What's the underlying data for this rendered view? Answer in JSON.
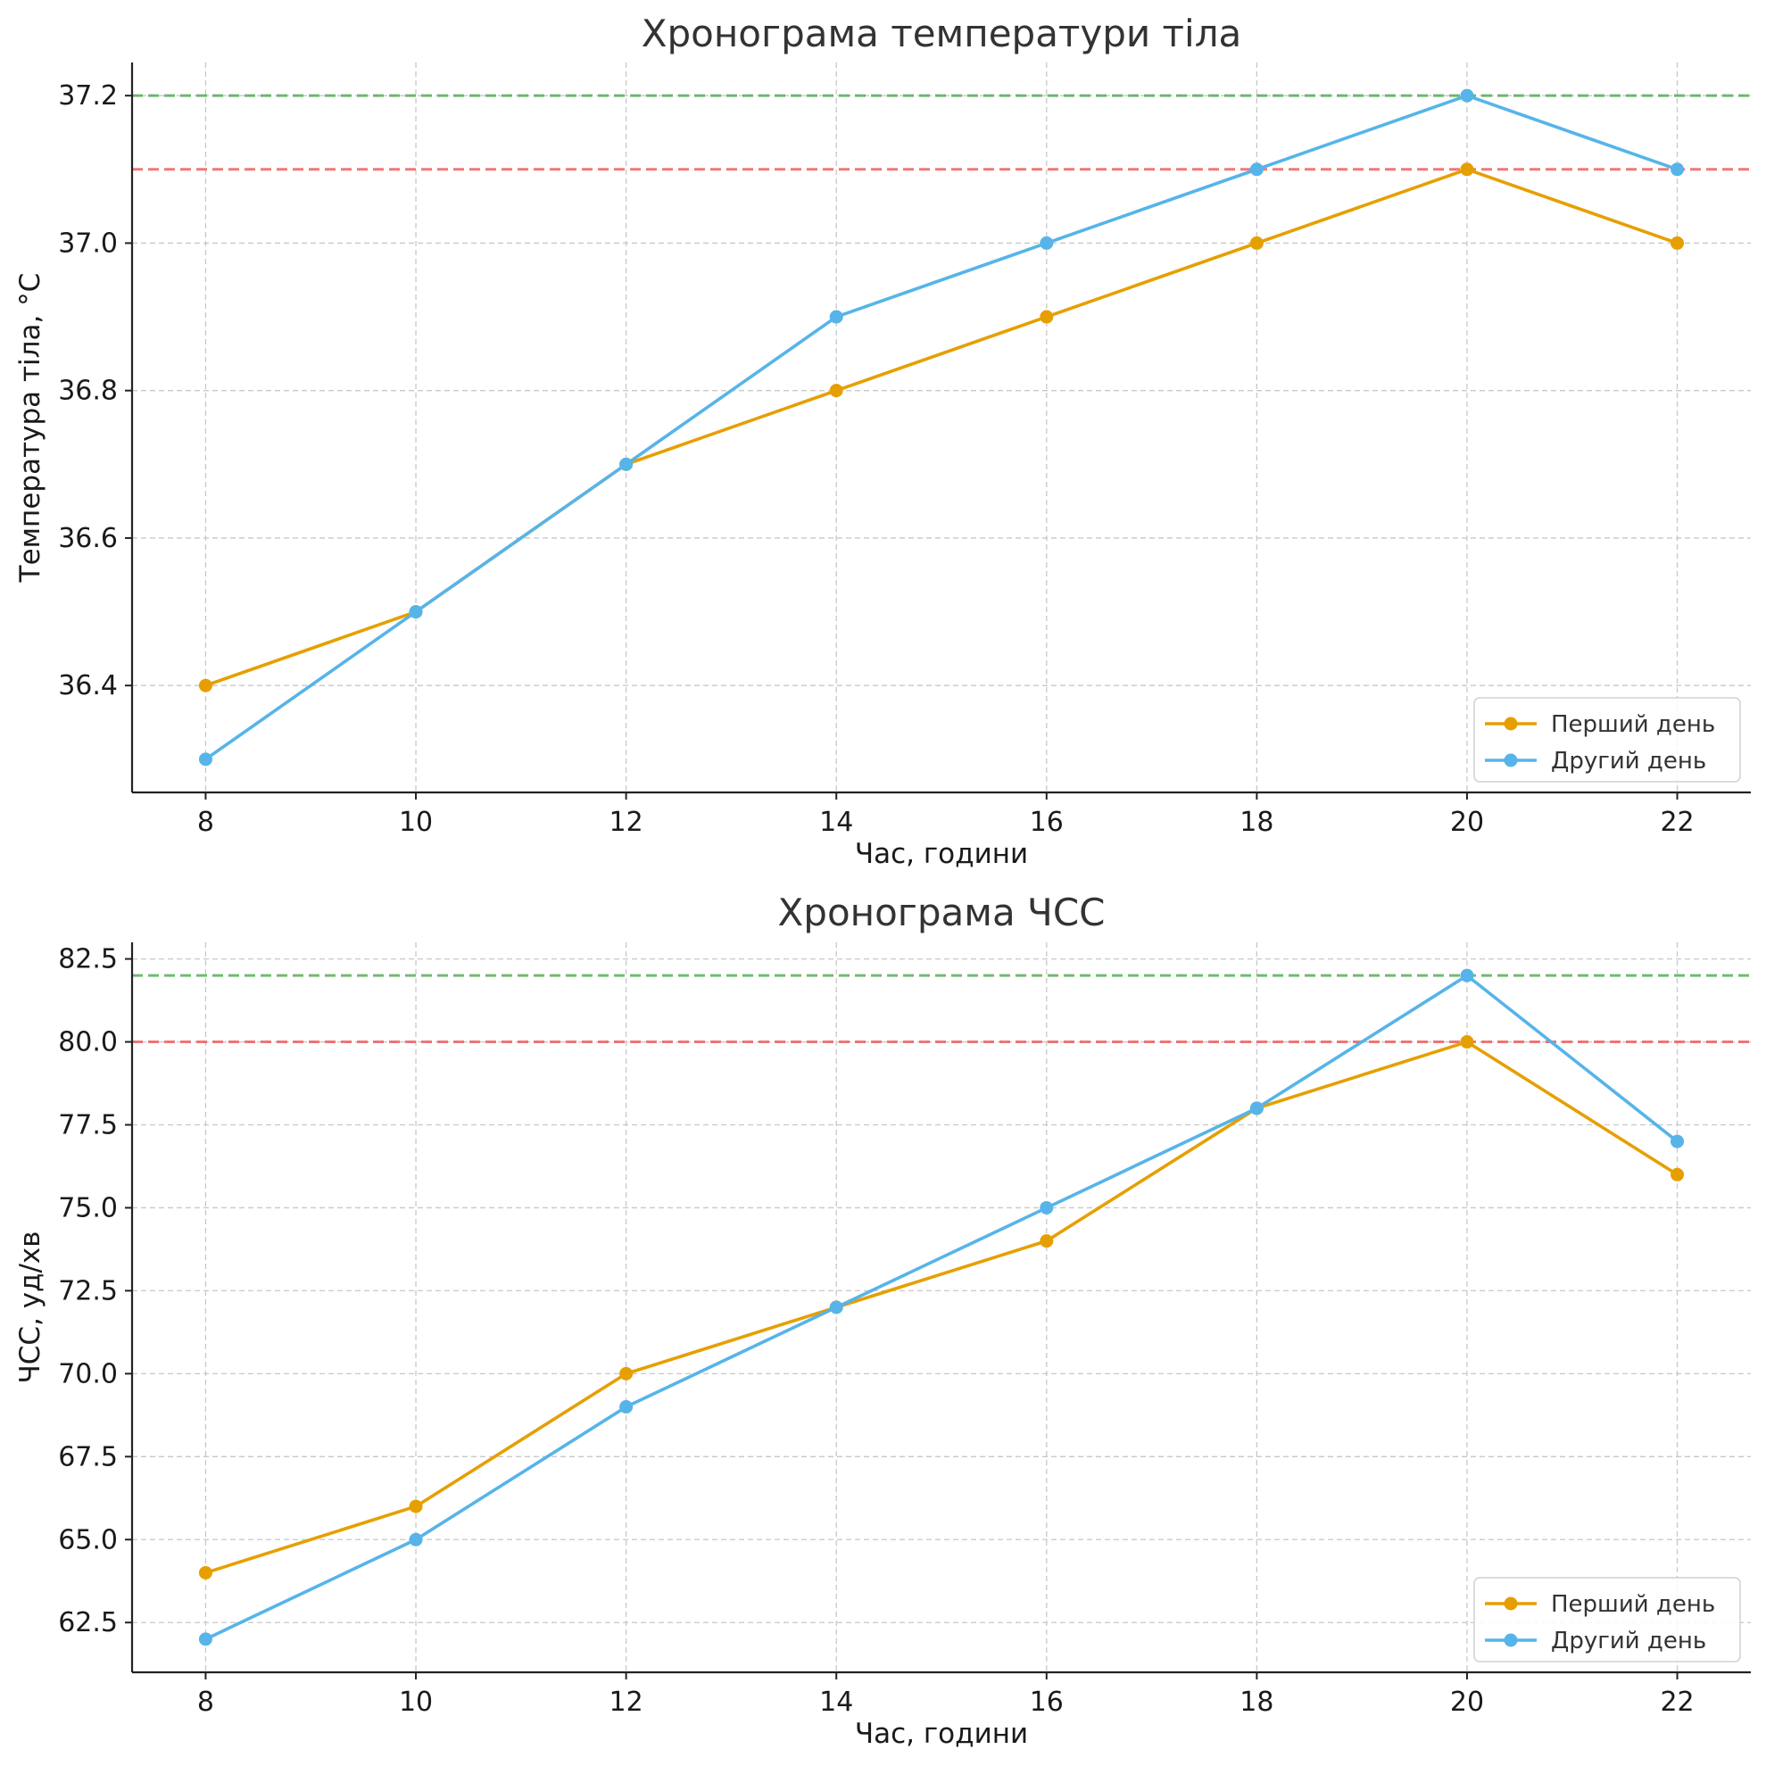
{
  "chart_data": [
    {
      "type": "line",
      "title": "Хронограма температури тіла",
      "xlabel": "Час, години",
      "ylabel": "Температура тіла, °С",
      "x": [
        8,
        10,
        12,
        14,
        16,
        18,
        20,
        22
      ],
      "xticks": [
        "8",
        "10",
        "12",
        "14",
        "16",
        "18",
        "20",
        "22"
      ],
      "yticks": [
        "36.4",
        "36.6",
        "36.8",
        "37.0",
        "37.2"
      ],
      "ytick_values": [
        36.4,
        36.6,
        36.8,
        37.0,
        37.2
      ],
      "xlim": [
        7.3,
        22.7
      ],
      "ylim": [
        36.255,
        37.245
      ],
      "grid": true,
      "legend_position": "lower-right",
      "series": [
        {
          "name": "Перший день",
          "color": "#E69F00",
          "values": [
            36.4,
            36.5,
            36.7,
            36.8,
            36.9,
            37.0,
            37.1,
            37.0
          ]
        },
        {
          "name": "Другий день",
          "color": "#56B4E9",
          "values": [
            36.3,
            36.5,
            36.7,
            36.9,
            37.0,
            37.1,
            37.2,
            37.1
          ]
        }
      ],
      "reference_lines": [
        {
          "y": 37.2,
          "color": "#5aad5a",
          "style": "dashed"
        },
        {
          "y": 37.1,
          "color": "#f06060",
          "style": "dashed"
        }
      ]
    },
    {
      "type": "line",
      "title": "Хронограма ЧСС",
      "xlabel": "Час, години",
      "ylabel": "ЧСС, уд/хв",
      "x": [
        8,
        10,
        12,
        14,
        16,
        18,
        20,
        22
      ],
      "xticks": [
        "8",
        "10",
        "12",
        "14",
        "16",
        "18",
        "20",
        "22"
      ],
      "yticks": [
        "62.5",
        "65.0",
        "67.5",
        "70.0",
        "72.5",
        "75.0",
        "77.5",
        "80.0",
        "82.5"
      ],
      "ytick_values": [
        62.5,
        65.0,
        67.5,
        70.0,
        72.5,
        75.0,
        77.5,
        80.0,
        82.5
      ],
      "xlim": [
        7.3,
        22.7
      ],
      "ylim": [
        61.0,
        83.0
      ],
      "grid": true,
      "legend_position": "lower-right",
      "series": [
        {
          "name": "Перший день",
          "color": "#E69F00",
          "values": [
            64,
            66,
            70,
            72,
            74,
            78,
            80,
            76
          ]
        },
        {
          "name": "Другий день",
          "color": "#56B4E9",
          "values": [
            62,
            65,
            69,
            72,
            75,
            78,
            82,
            77
          ]
        }
      ],
      "reference_lines": [
        {
          "y": 82,
          "color": "#5aad5a",
          "style": "dashed"
        },
        {
          "y": 80,
          "color": "#f06060",
          "style": "dashed"
        }
      ]
    }
  ]
}
